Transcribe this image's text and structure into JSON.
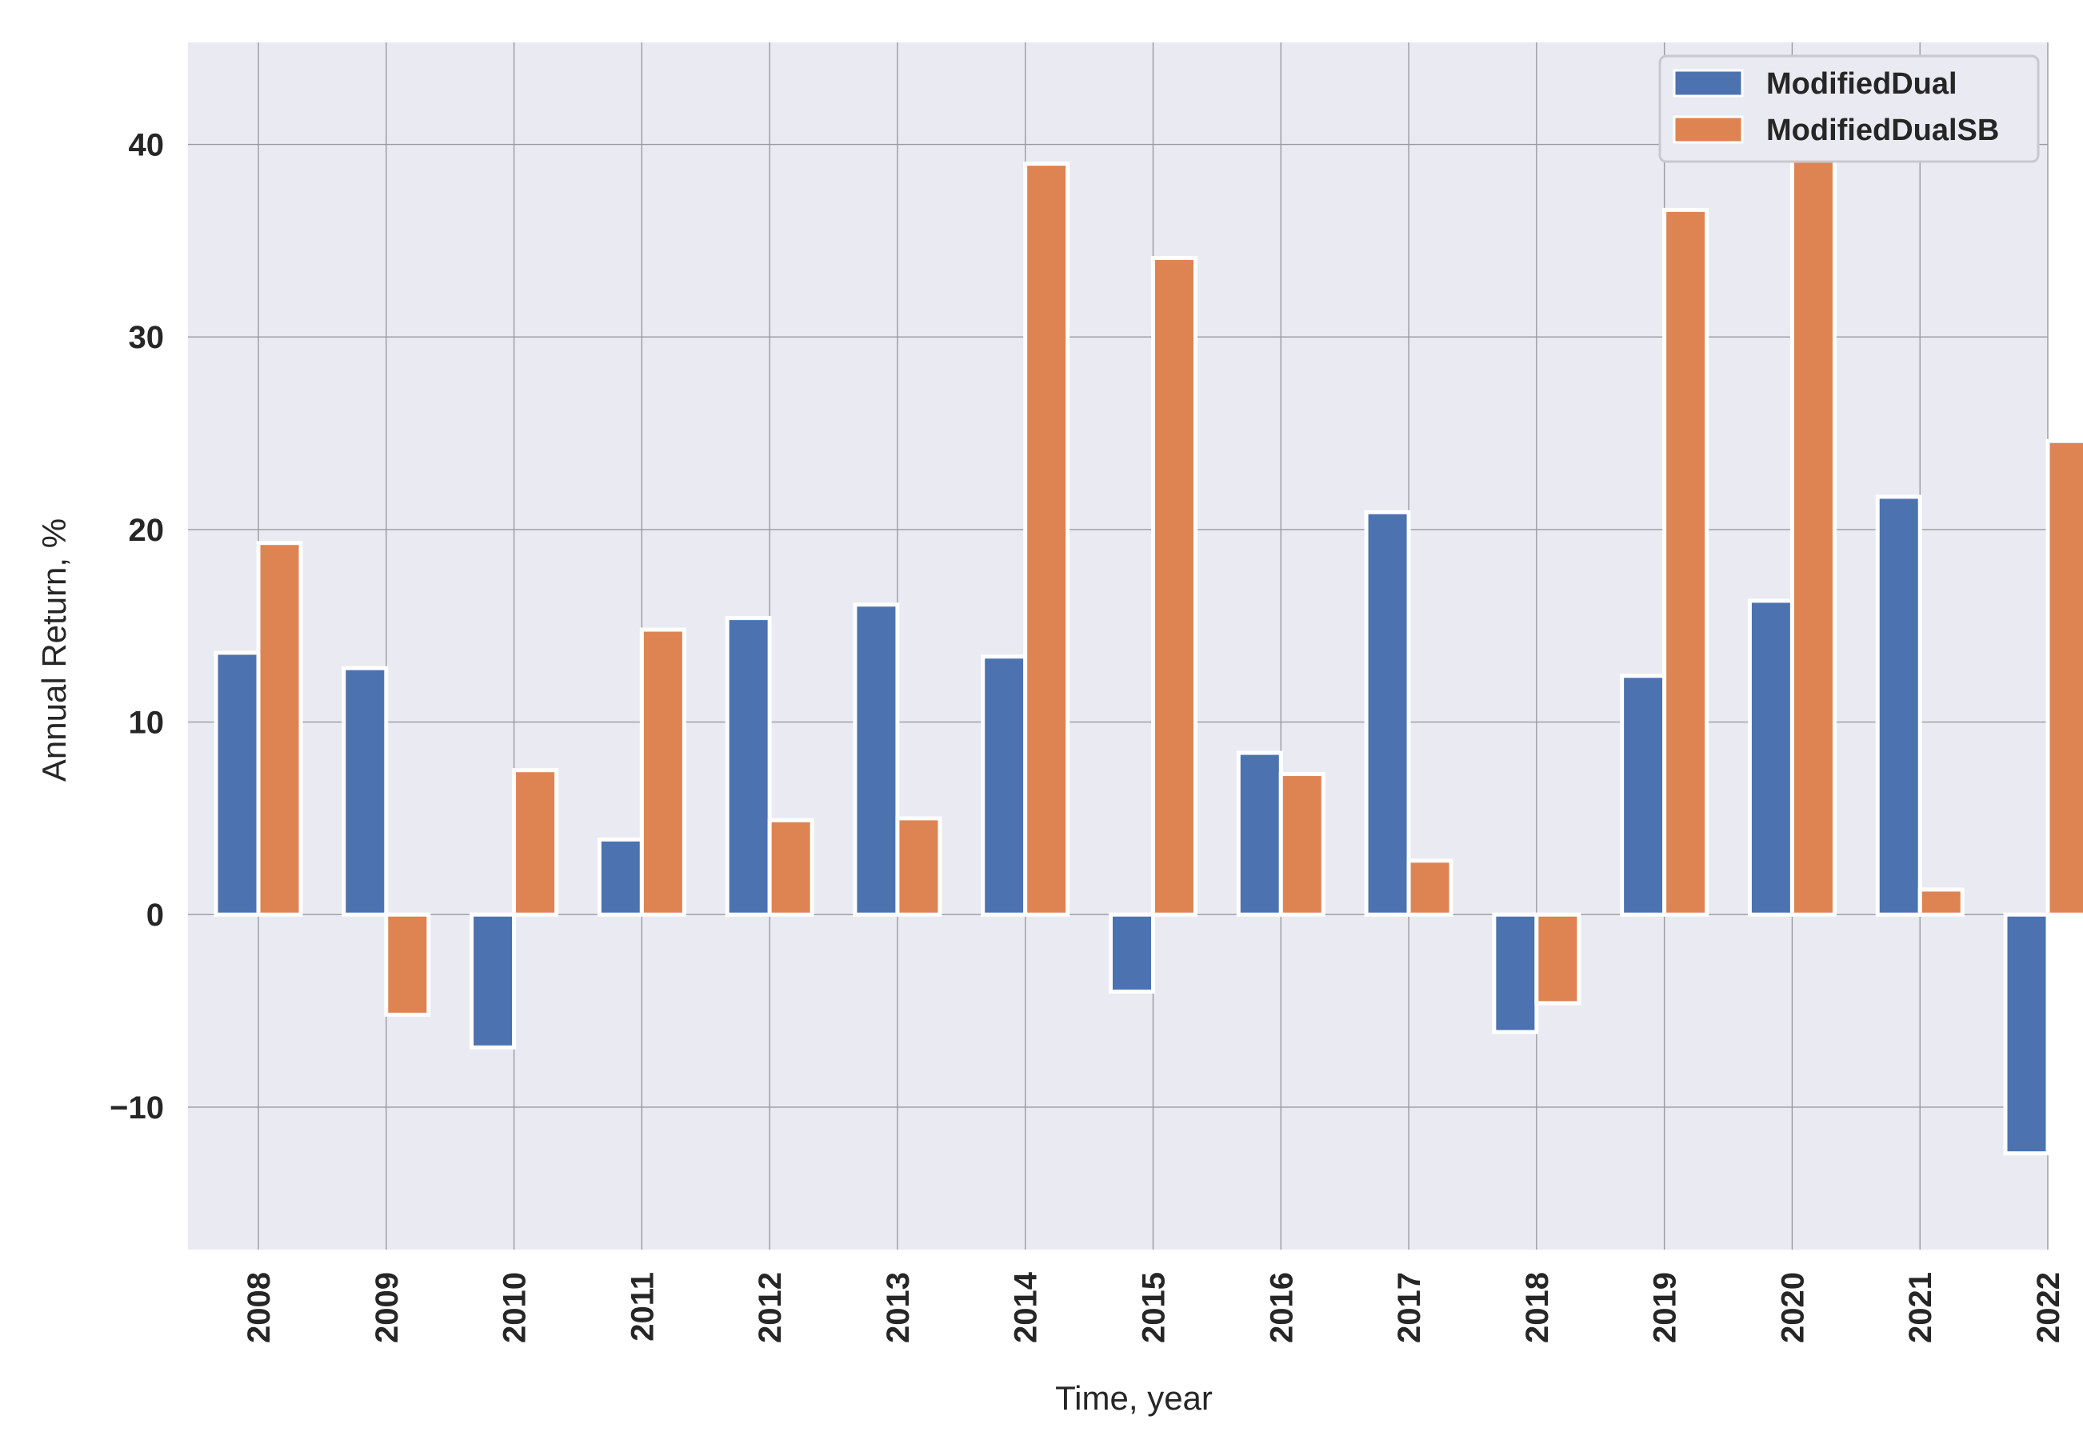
{
  "chart_data": {
    "type": "bar",
    "categories": [
      "2008",
      "2009",
      "2010",
      "2011",
      "2012",
      "2013",
      "2014",
      "2015",
      "2016",
      "2017",
      "2018",
      "2019",
      "2020",
      "2021",
      "2022"
    ],
    "series": [
      {
        "name": "ModifiedDual",
        "color": "#4c72b0",
        "values": [
          13.6,
          12.8,
          -6.9,
          3.9,
          15.4,
          16.1,
          13.4,
          -4.0,
          8.4,
          20.9,
          -6.1,
          12.4,
          16.3,
          21.7,
          -12.4
        ]
      },
      {
        "name": "ModifiedDualSB",
        "color": "#dd8452",
        "values": [
          19.3,
          -5.2,
          7.5,
          14.8,
          4.9,
          5.0,
          39.0,
          34.1,
          7.3,
          2.8,
          -4.6,
          36.6,
          40.3,
          1.3,
          24.6
        ]
      }
    ],
    "xlabel": "Time, year",
    "ylabel": "Annual Return, %",
    "ylim": [
      -17.4,
      45.3
    ],
    "yticks": [
      -10,
      0,
      10,
      20,
      30,
      40
    ],
    "ytick_labels": [
      "−10",
      "0",
      "10",
      "20",
      "30",
      "40"
    ],
    "grid": true,
    "legend_position": "top-right",
    "background": "#eaeaf2"
  }
}
